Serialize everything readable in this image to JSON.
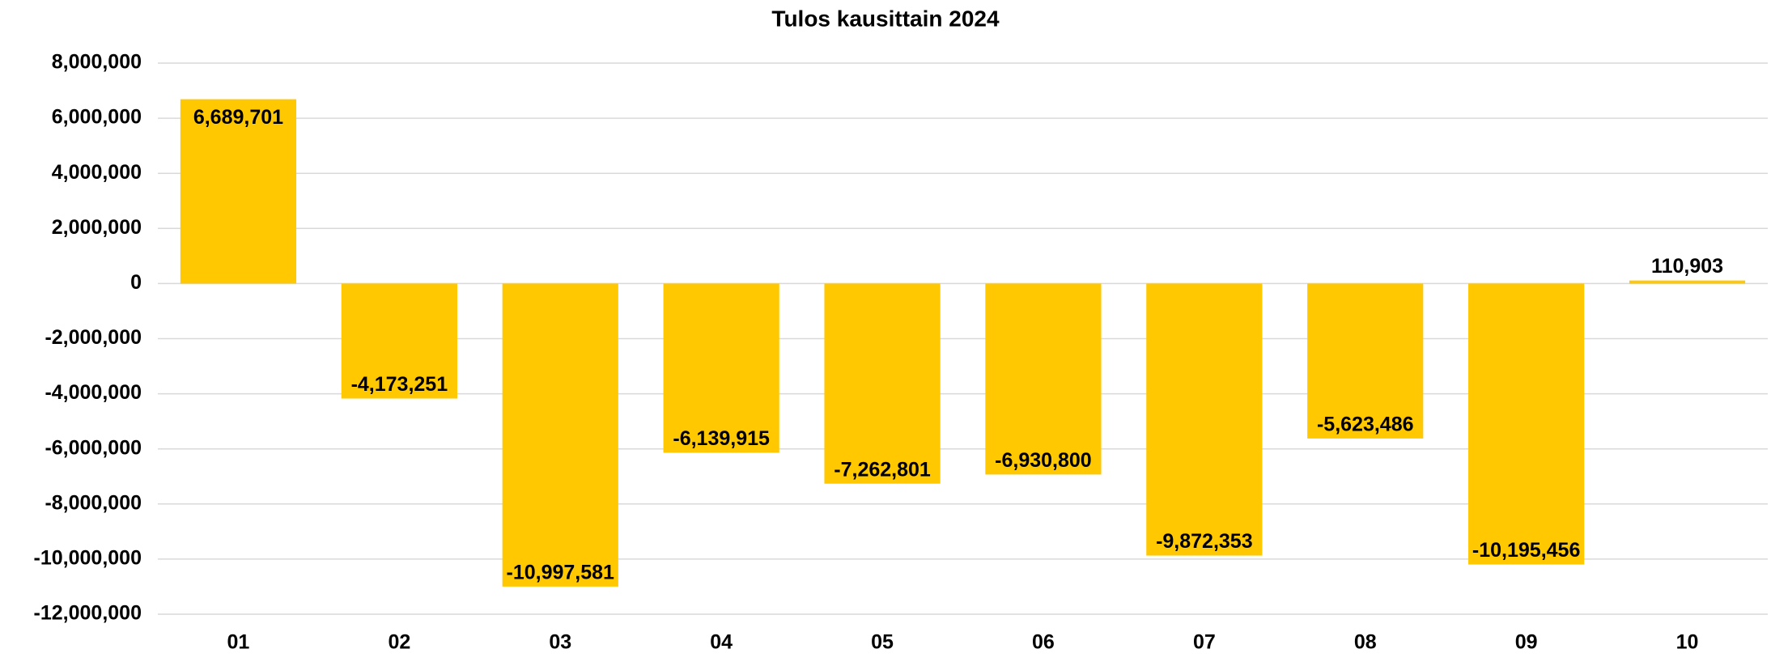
{
  "chart_data": {
    "type": "bar",
    "title": "Tulos kausittain 2024",
    "categories": [
      "01",
      "02",
      "03",
      "04",
      "05",
      "06",
      "07",
      "08",
      "09",
      "10"
    ],
    "values": [
      6689701,
      -4173251,
      -10997581,
      -6139915,
      -7262801,
      -6930800,
      -9872353,
      -5623486,
      -10195456,
      110903
    ],
    "value_labels": [
      "6,689,701",
      "-4,173,251",
      "-10,997,581",
      "-6,139,915",
      "-7,262,801",
      "-6,930,800",
      "-9,872,353",
      "-5,623,486",
      "-10,195,456",
      "110,903"
    ],
    "color": "#ffc800",
    "ylim": [
      -12000000,
      8000000
    ],
    "yticks": [
      {
        "value": -12000000,
        "label": "-12,000,000"
      },
      {
        "value": -10000000,
        "label": "-10,000,000"
      },
      {
        "value": -8000000,
        "label": "-8,000,000"
      },
      {
        "value": -6000000,
        "label": "-6,000,000"
      },
      {
        "value": -4000000,
        "label": "-4,000,000"
      },
      {
        "value": -2000000,
        "label": "-2,000,000"
      },
      0,
      {
        "value": 2000000,
        "label": "2,000,000"
      },
      {
        "value": 4000000,
        "label": "4,000,000"
      },
      {
        "value": 6000000,
        "label": "6,000,000"
      },
      {
        "value": 8000000,
        "label": "8,000,000"
      }
    ],
    "grid": true
  }
}
